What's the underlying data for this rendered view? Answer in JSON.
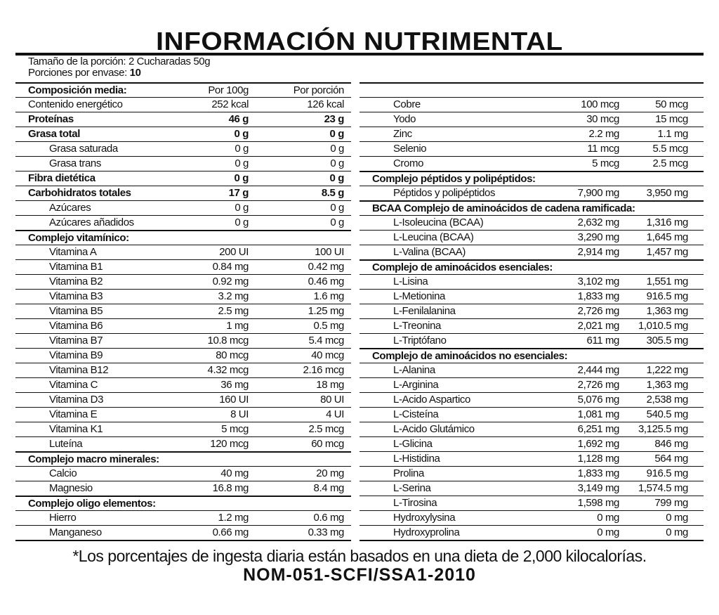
{
  "title": "INFORMACIÓN NUTRIMENTAL",
  "serving": {
    "size": "Tamaño de la porción: 2 Cucharadas 50g",
    "servings_label": "Porciones por envase: ",
    "servings_value": "10"
  },
  "header": {
    "label": "Composición media:",
    "a": "Por 100g",
    "b": "Por porción"
  },
  "left_rows": [
    {
      "t": "item",
      "label": "Contenido energético",
      "a": "252 kcal",
      "b": "126 kcal"
    },
    {
      "t": "bold",
      "label": "Proteínas",
      "a": "46 g",
      "b": "23 g"
    },
    {
      "t": "bold",
      "label": "Grasa total",
      "a": "0 g",
      "b": "0 g"
    },
    {
      "t": "sub",
      "label": "Grasa saturada",
      "a": "0 g",
      "b": "0 g"
    },
    {
      "t": "sub",
      "label": "Grasa trans",
      "a": "0 g",
      "b": "0 g"
    },
    {
      "t": "bold",
      "label": "Fibra dietética",
      "a": "0 g",
      "b": "0 g"
    },
    {
      "t": "bold",
      "label": "Carbohidratos totales",
      "a": "17 g",
      "b": "8.5 g"
    },
    {
      "t": "sub",
      "label": "Azúcares",
      "a": "0 g",
      "b": "0 g"
    },
    {
      "t": "sub",
      "label": "Azúcares añadidos",
      "a": "0 g",
      "b": "0 g"
    },
    {
      "t": "group",
      "label": "Complejo vitamínico:",
      "a": "",
      "b": ""
    },
    {
      "t": "sub",
      "label": "Vitamina A",
      "a": "200 UI",
      "b": "100 UI"
    },
    {
      "t": "sub",
      "label": "Vitamina B1",
      "a": "0.84 mg",
      "b": "0.42 mg"
    },
    {
      "t": "sub",
      "label": "Vitamina B2",
      "a": "0.92 mg",
      "b": "0.46 mg"
    },
    {
      "t": "sub",
      "label": "Vitamina B3",
      "a": "3.2 mg",
      "b": "1.6 mg"
    },
    {
      "t": "sub",
      "label": "Vitamina B5",
      "a": "2.5 mg",
      "b": "1.25 mg"
    },
    {
      "t": "sub",
      "label": "Vitamina B6",
      "a": "1 mg",
      "b": "0.5 mg"
    },
    {
      "t": "sub",
      "label": "Vitamina B7",
      "a": "10.8 mcg",
      "b": "5.4 mcg"
    },
    {
      "t": "sub",
      "label": "Vitamina B9",
      "a": "80 mcg",
      "b": "40 mcg"
    },
    {
      "t": "sub",
      "label": "Vitamina B12",
      "a": "4.32 mcg",
      "b": "2.16 mcg"
    },
    {
      "t": "sub",
      "label": "Vitamina C",
      "a": "36 mg",
      "b": "18 mg"
    },
    {
      "t": "sub",
      "label": "Vitamina D3",
      "a": "160 UI",
      "b": "80 UI"
    },
    {
      "t": "sub",
      "label": "Vitamina E",
      "a": "8 UI",
      "b": "4 UI"
    },
    {
      "t": "sub",
      "label": "Vitamina K1",
      "a": "5 mcg",
      "b": "2.5 mcg"
    },
    {
      "t": "sub",
      "label": "Luteína",
      "a": "120 mcg",
      "b": "60 mcg"
    },
    {
      "t": "group",
      "label": "Complejo macro minerales:",
      "a": "",
      "b": ""
    },
    {
      "t": "sub",
      "label": "Calcio",
      "a": "40 mg",
      "b": "20 mg"
    },
    {
      "t": "sub",
      "label": "Magnesio",
      "a": "16.8 mg",
      "b": "8.4 mg"
    },
    {
      "t": "group",
      "label": "Complejo oligo elementos:",
      "a": "",
      "b": ""
    },
    {
      "t": "sub",
      "label": "Hierro",
      "a": "1.2 mg",
      "b": "0.6 mg"
    },
    {
      "t": "sub",
      "label": "Manganeso",
      "a": "0.66 mg",
      "b": "0.33 mg"
    }
  ],
  "right_rows": [
    {
      "t": "sub",
      "label": "Cobre",
      "a": "100 mcg",
      "b": "50 mcg"
    },
    {
      "t": "sub",
      "label": "Yodo",
      "a": "30 mcg",
      "b": "15 mcg"
    },
    {
      "t": "sub",
      "label": "Zinc",
      "a": "2.2 mg",
      "b": "1.1 mg"
    },
    {
      "t": "sub",
      "label": "Selenio",
      "a": "11 mcg",
      "b": "5.5 mcg"
    },
    {
      "t": "sub",
      "label": "Cromo",
      "a": "5 mcg",
      "b": "2.5 mcg"
    },
    {
      "t": "group",
      "label": "Complejo péptidos y polipéptidos:",
      "a": "",
      "b": ""
    },
    {
      "t": "sub",
      "label": "Péptidos y polipéptidos",
      "a": "7,900 mg",
      "b": "3,950 mg"
    },
    {
      "t": "group",
      "label": "BCAA Complejo de aminoácidos de cadena ramificada:",
      "a": "",
      "b": ""
    },
    {
      "t": "sub",
      "label": "L-Isoleucina (BCAA)",
      "a": "2,632 mg",
      "b": "1,316 mg"
    },
    {
      "t": "sub",
      "label": "L-Leucina (BCAA)",
      "a": "3,290 mg",
      "b": "1,645 mg"
    },
    {
      "t": "sub",
      "label": "L-Valina (BCAA)",
      "a": "2,914 mg",
      "b": "1,457 mg"
    },
    {
      "t": "group",
      "label": "Complejo de aminoácidos esenciales:",
      "a": "",
      "b": ""
    },
    {
      "t": "sub",
      "label": "L-Lisina",
      "a": "3,102 mg",
      "b": "1,551 mg"
    },
    {
      "t": "sub",
      "label": "L-Metionina",
      "a": "1,833 mg",
      "b": "916.5 mg"
    },
    {
      "t": "sub",
      "label": "L-Fenilalanina",
      "a": "2,726 mg",
      "b": "1,363 mg"
    },
    {
      "t": "sub",
      "label": "L-Treonina",
      "a": "2,021 mg",
      "b": "1,010.5 mg"
    },
    {
      "t": "sub",
      "label": "L-Triptófano",
      "a": "611 mg",
      "b": "305.5 mg"
    },
    {
      "t": "group",
      "label": "Complejo de aminoácidos no esenciales:",
      "a": "",
      "b": ""
    },
    {
      "t": "sub",
      "label": "L-Alanina",
      "a": "2,444 mg",
      "b": "1,222 mg"
    },
    {
      "t": "sub",
      "label": "L-Arginina",
      "a": "2,726 mg",
      "b": "1,363 mg"
    },
    {
      "t": "sub",
      "label": "L-Acido Aspartico",
      "a": "5,076 mg",
      "b": "2,538 mg"
    },
    {
      "t": "sub",
      "label": "L-Cisteína",
      "a": "1,081 mg",
      "b": "540.5 mg"
    },
    {
      "t": "sub",
      "label": "L-Acido Glutámico",
      "a": "6,251 mg",
      "b": "3,125.5 mg"
    },
    {
      "t": "sub",
      "label": "L-Glicina",
      "a": "1,692 mg",
      "b": "846 mg"
    },
    {
      "t": "sub",
      "label": "L-Histidina",
      "a": "1,128 mg",
      "b": "564 mg"
    },
    {
      "t": "sub",
      "label": "Prolina",
      "a": "1,833 mg",
      "b": "916.5 mg"
    },
    {
      "t": "sub",
      "label": "L-Serina",
      "a": "3,149 mg",
      "b": "1,574.5 mg"
    },
    {
      "t": "sub",
      "label": "L-Tirosina",
      "a": "1,598 mg",
      "b": "799 mg"
    },
    {
      "t": "sub",
      "label": "Hydroxylysina",
      "a": "0 mg",
      "b": "0 mg"
    },
    {
      "t": "sub",
      "label": "Hydroxyprolina",
      "a": "0 mg",
      "b": "0 mg"
    }
  ],
  "footnote": "*Los porcentajes de ingesta diaria están basados en una dieta de 2,000 kilocalorías.",
  "norm": "NOM-051-SCFI/SSA1-2010"
}
